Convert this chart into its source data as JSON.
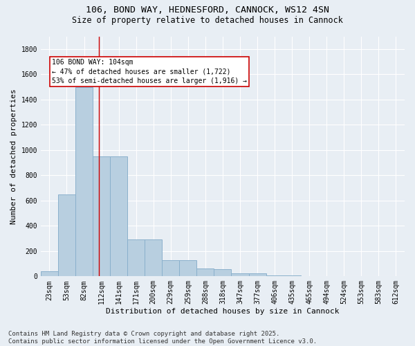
{
  "title_line1": "106, BOND WAY, HEDNESFORD, CANNOCK, WS12 4SN",
  "title_line2": "Size of property relative to detached houses in Cannock",
  "xlabel": "Distribution of detached houses by size in Cannock",
  "ylabel": "Number of detached properties",
  "bar_labels": [
    "23sqm",
    "53sqm",
    "82sqm",
    "112sqm",
    "141sqm",
    "171sqm",
    "200sqm",
    "229sqm",
    "259sqm",
    "288sqm",
    "318sqm",
    "347sqm",
    "377sqm",
    "406sqm",
    "435sqm",
    "465sqm",
    "494sqm",
    "524sqm",
    "553sqm",
    "583sqm",
    "612sqm"
  ],
  "bar_values": [
    40,
    650,
    1500,
    950,
    950,
    290,
    290,
    130,
    130,
    60,
    55,
    25,
    22,
    10,
    5,
    3,
    2,
    1,
    1,
    0,
    0
  ],
  "bar_color": "#b8cfe0",
  "bar_edgecolor": "#8ab0cc",
  "vline_x": 2.85,
  "vline_color": "#cc0000",
  "annotation_text": "106 BOND WAY: 104sqm\n← 47% of detached houses are smaller (1,722)\n53% of semi-detached houses are larger (1,916) →",
  "annotation_box_color": "#ffffff",
  "annotation_box_edgecolor": "#cc0000",
  "ylim": [
    0,
    1900
  ],
  "yticks": [
    0,
    200,
    400,
    600,
    800,
    1000,
    1200,
    1400,
    1600,
    1800
  ],
  "background_color": "#e8eef4",
  "grid_color": "#ffffff",
  "footnote": "Contains HM Land Registry data © Crown copyright and database right 2025.\nContains public sector information licensed under the Open Government Licence v3.0.",
  "title_fontsize": 9.5,
  "subtitle_fontsize": 8.5,
  "axis_label_fontsize": 8,
  "tick_fontsize": 7,
  "annotation_fontsize": 7,
  "footnote_fontsize": 6.5
}
